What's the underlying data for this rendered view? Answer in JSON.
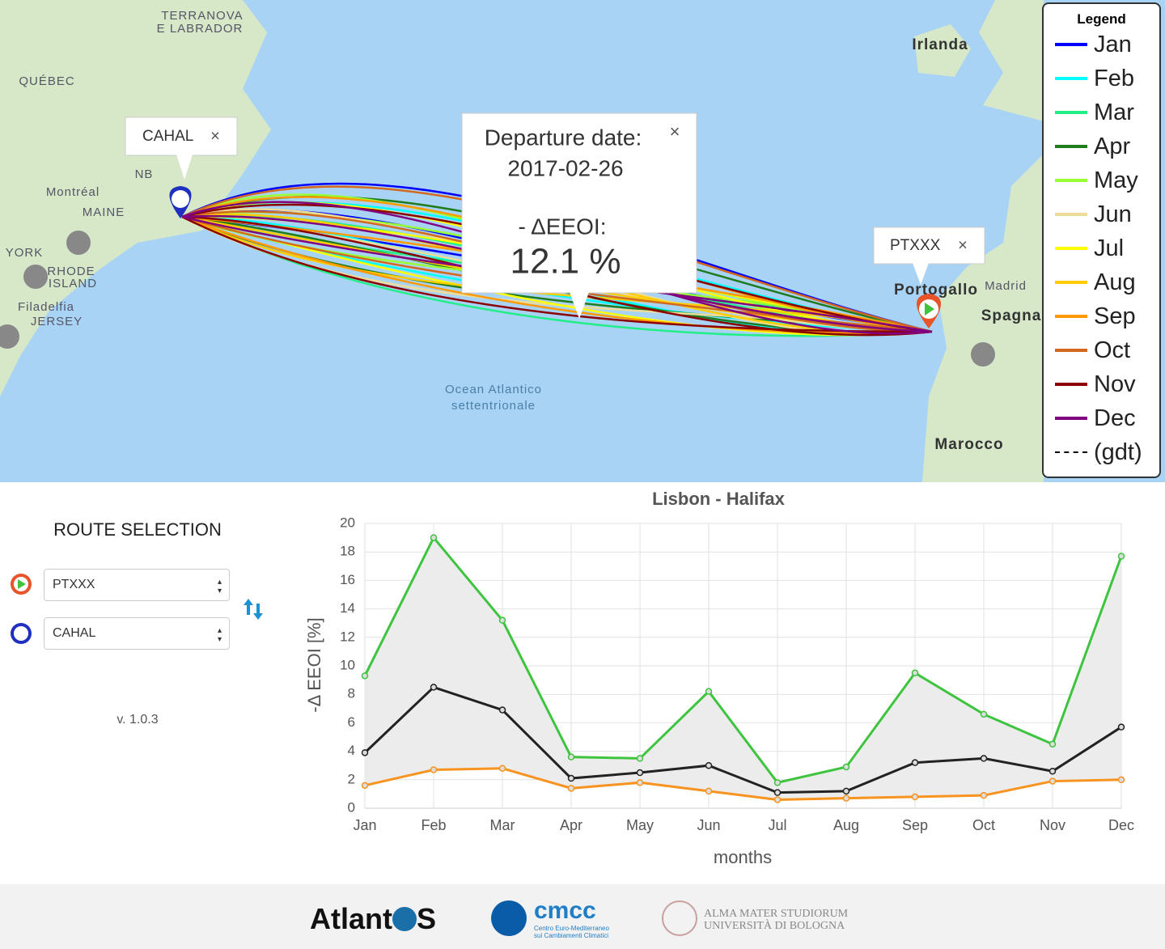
{
  "map": {
    "places": [
      "TERRANOVA",
      "E LABRADOR",
      "QUÉBEC",
      "NB",
      "Montréal",
      "MAINE",
      "YORK",
      "RHODE",
      "ISLAND",
      "Filadelfia",
      "JERSEY",
      "Irlanda",
      "Portogallo",
      "Madrid",
      "Spagna",
      "Marocco",
      "Ocean Atlantico",
      "settentrionale"
    ],
    "ports": [
      {
        "code": "CAHAL",
        "close": "×"
      },
      {
        "code": "PTXXX",
        "close": "×"
      }
    ],
    "popup": {
      "title": "Departure date:",
      "date": "2017-02-26",
      "metric": "- ΔEEOI:",
      "value": "12.1 %",
      "close": "×"
    },
    "legend": {
      "title": "Legend",
      "items": [
        {
          "label": "Jan",
          "color": "#0000ff"
        },
        {
          "label": "Feb",
          "color": "#00ffff"
        },
        {
          "label": "Mar",
          "color": "#22ee88"
        },
        {
          "label": "Apr",
          "color": "#1e7b1e"
        },
        {
          "label": "May",
          "color": "#99ff33"
        },
        {
          "label": "Jun",
          "color": "#eedd99"
        },
        {
          "label": "Jul",
          "color": "#ffff00"
        },
        {
          "label": "Aug",
          "color": "#ffcc00"
        },
        {
          "label": "Sep",
          "color": "#ff9900"
        },
        {
          "label": "Oct",
          "color": "#d2691e"
        },
        {
          "label": "Nov",
          "color": "#8b0000"
        },
        {
          "label": "Dec",
          "color": "#800080"
        },
        {
          "label": "(gdt)",
          "color": "#000000",
          "dashed": true
        }
      ]
    }
  },
  "route_selection": {
    "title": "ROUTE SELECTION",
    "origin": "PTXXX",
    "destination": "CAHAL",
    "version": "v. 1.0.3"
  },
  "chart_data": {
    "type": "line",
    "title": "Lisbon - Halifax",
    "x_label": "months",
    "y_label": "-Δ EEOI [%]",
    "categories": [
      "Jan",
      "Feb",
      "Mar",
      "Apr",
      "May",
      "Jun",
      "Jul",
      "Aug",
      "Sep",
      "Oct",
      "Nov",
      "Dec"
    ],
    "series": [
      {
        "color": "#3ec43e",
        "values": [
          9.3,
          19.0,
          13.2,
          3.6,
          3.5,
          8.2,
          1.8,
          2.9,
          9.5,
          6.6,
          4.5,
          17.7
        ]
      },
      {
        "color": "#222222",
        "values": [
          3.9,
          8.5,
          6.9,
          2.1,
          2.5,
          3.0,
          1.1,
          1.2,
          3.2,
          3.5,
          2.6,
          5.7
        ]
      },
      {
        "color": "#f7931e",
        "values": [
          1.6,
          2.7,
          2.8,
          1.4,
          1.8,
          1.2,
          0.6,
          0.7,
          0.8,
          0.9,
          1.9,
          2.0
        ]
      }
    ],
    "area_color": "#ececec",
    "ylim": [
      0,
      20
    ],
    "yticks": [
      0,
      2,
      4,
      6,
      8,
      10,
      12,
      14,
      16,
      18,
      20
    ],
    "grid": true
  },
  "footer": {
    "logos": [
      "Atlant",
      "S",
      "cmcc",
      "Centro Euro-Mediterraneo",
      "sui Cambiamenti Climatici",
      "ALMA MATER STUDIORUM",
      "UNIVERSITÀ DI BOLOGNA"
    ]
  }
}
